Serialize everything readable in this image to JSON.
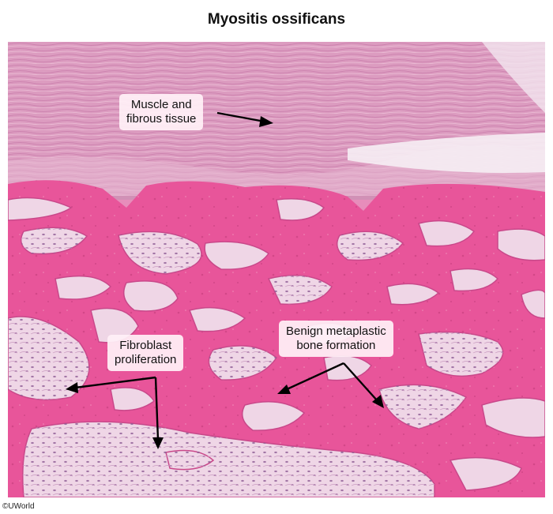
{
  "title": "Myositis ossificans",
  "labels": {
    "muscle_line1": "Muscle and",
    "muscle_line2": "fibrous tissue",
    "fibroblast_line1": "Fibroblast",
    "fibroblast_line2": "proliferation",
    "bone_line1": "Benign metaplastic",
    "bone_line2": "bone formation"
  },
  "copyright": "©UWorld",
  "colors": {
    "bone": "#e8559a",
    "muscle": "#dc9cc0",
    "marrow": "#efd6e6",
    "cells": "#8e5c95",
    "background": "#ffffff"
  }
}
